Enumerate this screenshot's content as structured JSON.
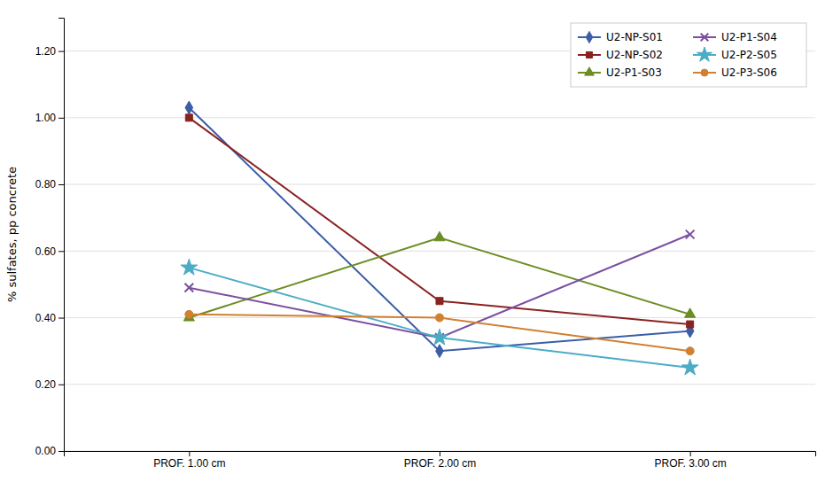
{
  "chart_data": {
    "type": "line",
    "ylabel": "% sulfates, pp concrete",
    "categories": [
      "PROF.  1.00 cm",
      "PROF.  2.00 cm",
      "PROF.  3.00 cm"
    ],
    "series": [
      {
        "name": "U2-NP-S01",
        "color": "#3B5EA6",
        "marker": "diamond",
        "values": [
          1.03,
          0.3,
          0.36
        ]
      },
      {
        "name": "U2-NP-S02",
        "color": "#8B2222",
        "marker": "square",
        "values": [
          1.0,
          0.45,
          0.38
        ]
      },
      {
        "name": "U2-P1-S03",
        "color": "#6B8E23",
        "marker": "triangle",
        "values": [
          0.4,
          0.64,
          0.41
        ]
      },
      {
        "name": "U2-P1-S04",
        "color": "#7B4FA0",
        "marker": "x",
        "values": [
          0.49,
          0.34,
          0.65
        ]
      },
      {
        "name": "U2-P2-S05",
        "color": "#4BACC6",
        "marker": "star",
        "values": [
          0.55,
          0.34,
          0.25
        ]
      },
      {
        "name": "U2-P3-S06",
        "color": "#D08030",
        "marker": "circle",
        "values": [
          0.41,
          0.4,
          0.3
        ]
      }
    ],
    "ylim": [
      0.0,
      1.3
    ],
    "yticks": [
      {
        "value": 0.0,
        "label": "0.00"
      },
      {
        "value": 0.2,
        "label": "0.20"
      },
      {
        "value": 0.4,
        "label": "0.40"
      },
      {
        "value": 0.6,
        "label": "0.60"
      },
      {
        "value": 0.8,
        "label": "0.80"
      },
      {
        "value": 1.0,
        "label": "1.00"
      },
      {
        "value": 1.2,
        "label": "1.20"
      }
    ],
    "grid": true,
    "legend": "upper right"
  }
}
